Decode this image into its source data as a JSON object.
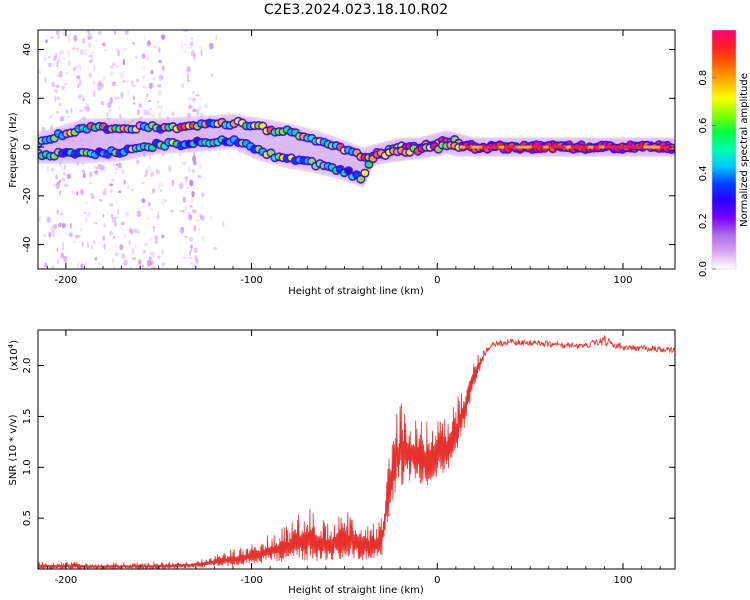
{
  "title": "C2E3.2024.023.18.10.R02",
  "chart_data": [
    {
      "type": "heatmap",
      "xlabel": "Height of straight line (km)",
      "ylabel": "Frequency (Hz)",
      "xlim": [
        -215,
        128
      ],
      "ylim": [
        -50,
        48
      ],
      "x_ticks": [
        -200,
        -100,
        0,
        100
      ],
      "y_ticks": [
        -40,
        -20,
        0,
        20,
        40
      ],
      "colorbar": {
        "label": "Normalized spectral amplitude",
        "range": [
          0,
          1
        ],
        "ticks": [
          0.0,
          0.2,
          0.4,
          0.6,
          0.8
        ],
        "tick_labels": [
          "0.0",
          "0.2",
          "0.4",
          "0.6",
          "0.8"
        ],
        "colormap": [
          "#ffffff",
          "#d9a6f2",
          "#b06be8",
          "#7a00ff",
          "#2b00ff",
          "#0040ff",
          "#00c8ff",
          "#00ffb0",
          "#00ff40",
          "#80ff00",
          "#ffff00",
          "#ffb000",
          "#ff6000",
          "#ff2020",
          "#ff0080"
        ]
      },
      "ridge": {
        "x": [
          -215,
          -190,
          -170,
          -150,
          -125,
          -110,
          -95,
          -80,
          -65,
          -50,
          -40,
          -35,
          -30,
          -20,
          -10,
          0,
          5,
          10,
          20,
          40,
          60,
          80,
          100,
          128
        ],
        "upper_y": [
          2,
          8,
          8,
          8,
          9,
          10,
          8,
          6,
          3,
          -1,
          -4,
          -3,
          -2,
          0,
          0,
          2,
          3,
          2,
          0,
          0,
          0,
          0,
          0,
          0
        ],
        "lower_y": [
          -3,
          -3,
          -2,
          1,
          2,
          3,
          -2,
          -5,
          -7,
          -10,
          -13,
          -4,
          -3,
          -2,
          -1,
          0,
          1,
          0,
          0,
          0,
          0,
          0,
          0,
          0
        ]
      }
    },
    {
      "type": "line",
      "xlabel": "Height of straight line (km)",
      "ylabel": "SNR (10 * v/v)",
      "scale_label": "(x10",
      "scale_exponent": "4",
      "scale_close": ")",
      "xlim": [
        -215,
        128
      ],
      "ylim": [
        0,
        23500
      ],
      "x_ticks": [
        -200,
        -100,
        0,
        100
      ],
      "y_ticks": [
        5000,
        10000,
        15000,
        20000
      ],
      "y_tick_labels": [
        "0.5",
        "1.0",
        "1.5",
        "2.0"
      ],
      "color": "#e8302c",
      "envelope": {
        "x": [
          -215,
          -180,
          -150,
          -130,
          -110,
          -100,
          -90,
          -80,
          -70,
          -60,
          -50,
          -45,
          -40,
          -35,
          -30,
          -28,
          -25,
          -20,
          -15,
          -10,
          -5,
          0,
          5,
          10,
          15,
          20,
          25,
          30,
          40,
          50,
          60,
          70,
          80,
          90,
          100,
          110,
          128
        ],
        "upper": [
          800,
          600,
          700,
          900,
          2000,
          2500,
          3500,
          4500,
          6500,
          5000,
          5500,
          6000,
          5000,
          4500,
          5500,
          9000,
          13000,
          17500,
          16000,
          16000,
          14500,
          15000,
          15000,
          17000,
          19000,
          21000,
          21500,
          22300,
          22700,
          22500,
          22400,
          22300,
          22200,
          23000,
          22100,
          22000,
          21800
        ],
        "lower": [
          0,
          0,
          0,
          100,
          300,
          500,
          600,
          700,
          800,
          700,
          800,
          900,
          800,
          900,
          1000,
          3000,
          6000,
          8000,
          8500,
          8000,
          8000,
          9000,
          9500,
          11000,
          14000,
          18000,
          20500,
          21500,
          21800,
          21700,
          21600,
          21500,
          21400,
          21400,
          21300,
          21200,
          21000
        ]
      }
    }
  ]
}
